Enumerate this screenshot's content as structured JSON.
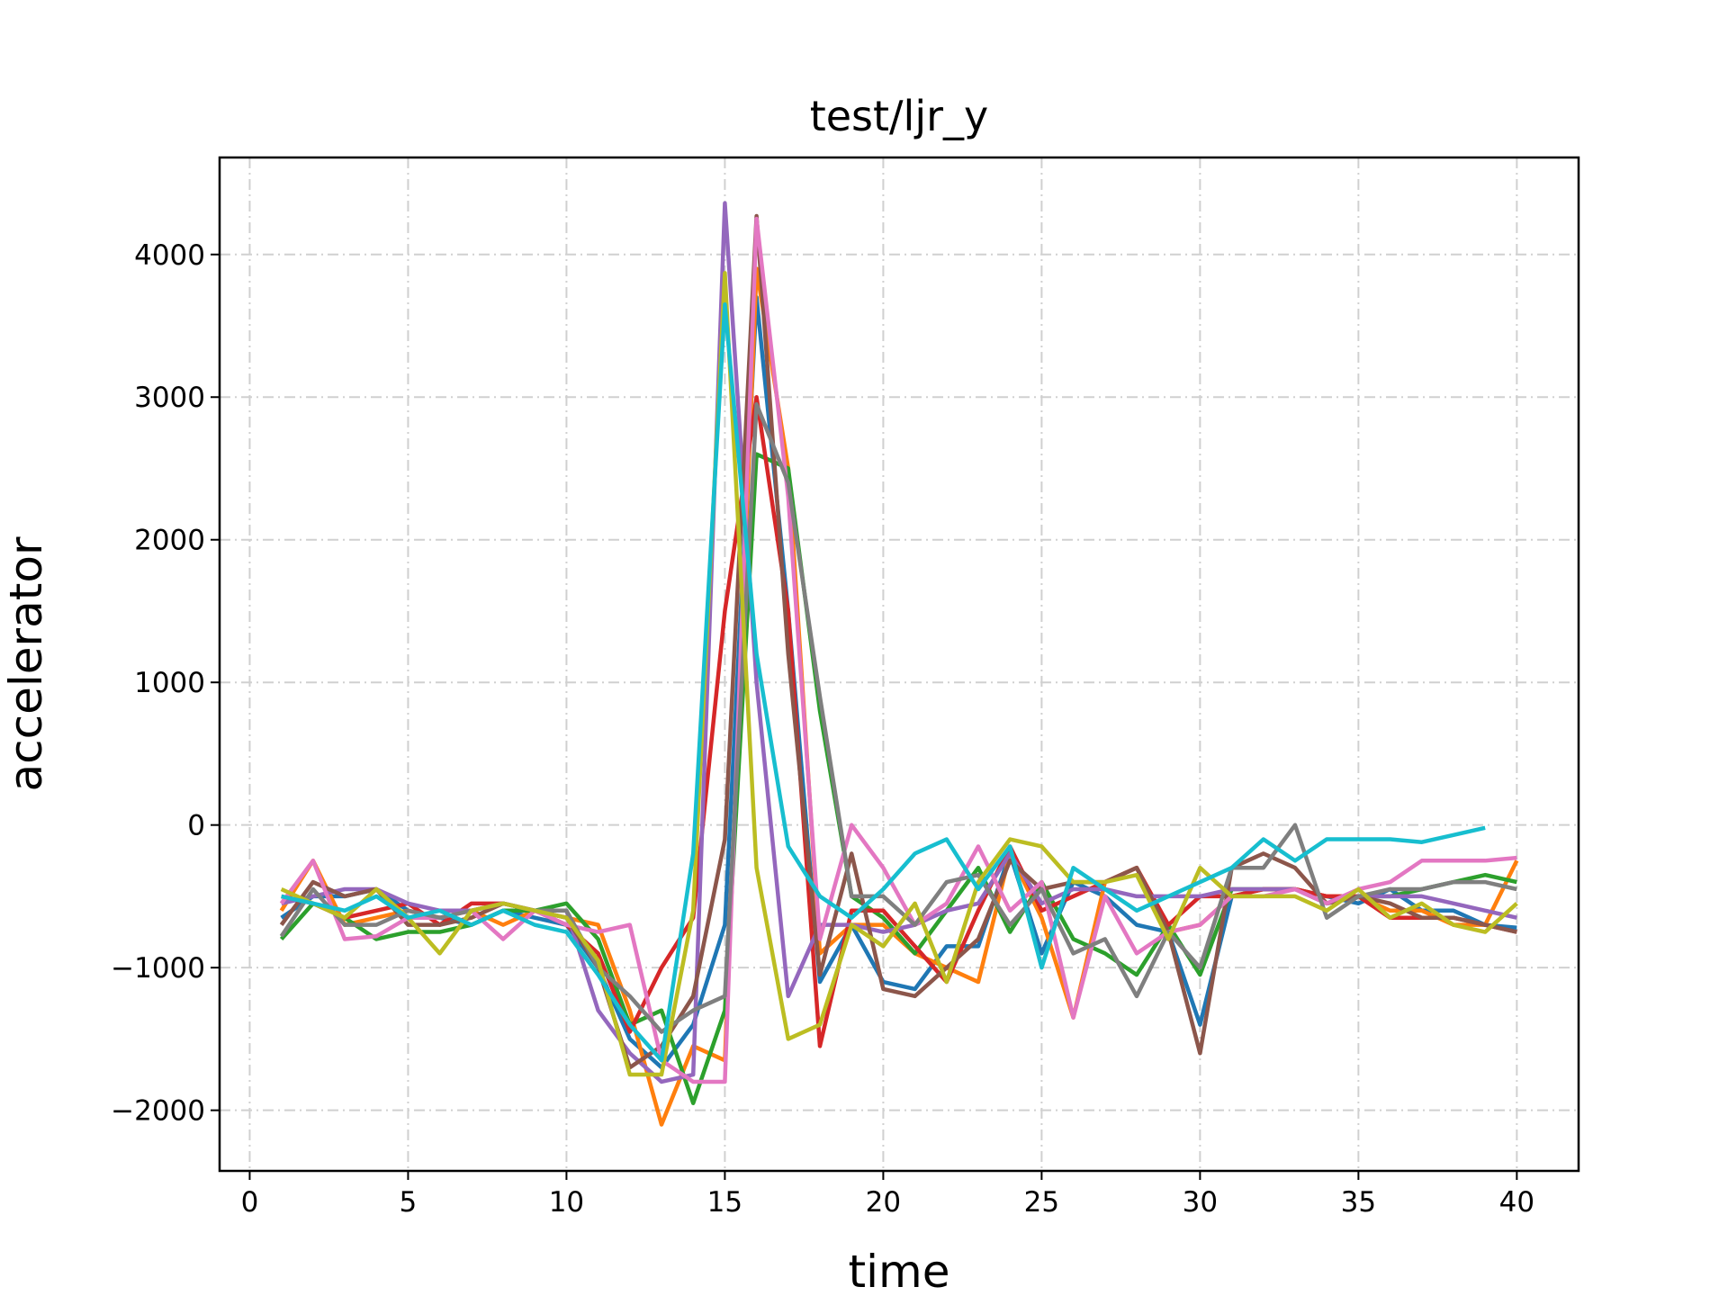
{
  "chart_data": {
    "type": "line",
    "title": "test/ljr_y",
    "xlabel": "time",
    "ylabel": "accelerator",
    "x": [
      1,
      2,
      3,
      4,
      5,
      6,
      7,
      8,
      9,
      10,
      11,
      12,
      13,
      14,
      15,
      16,
      17,
      18,
      19,
      20,
      21,
      22,
      23,
      24,
      25,
      26,
      27,
      28,
      29,
      30,
      31,
      32,
      33,
      34,
      35,
      36,
      37,
      38,
      39,
      40
    ],
    "series": [
      {
        "color": "#1f77b4",
        "values": [
          -650,
          -500,
          -500,
          -450,
          -600,
          -650,
          -700,
          -600,
          -650,
          -700,
          -1000,
          -1500,
          -1700,
          -1400,
          -700,
          3700,
          1500,
          -1100,
          -700,
          -1100,
          -1150,
          -850,
          -850,
          -200,
          -900,
          -400,
          -500,
          -700,
          -750,
          -1400,
          -500,
          -450,
          -450,
          -500,
          -550,
          -450,
          -600,
          -600,
          -700,
          -720
        ]
      },
      {
        "color": "#ff7f0e",
        "values": [
          -600,
          -250,
          -700,
          -650,
          -600,
          -650,
          -600,
          -700,
          -600,
          -650,
          -700,
          -1300,
          -2100,
          -1550,
          -1650,
          3900,
          2500,
          -900,
          -700,
          -700,
          -900,
          -1000,
          -1100,
          -200,
          -650,
          -1350,
          -400,
          -300,
          -750,
          -700,
          -500,
          -450,
          -450,
          -500,
          -500,
          -600,
          -600,
          -700,
          -700,
          -250
        ]
      },
      {
        "color": "#2ca02c",
        "values": [
          -800,
          -550,
          -650,
          -800,
          -750,
          -750,
          -700,
          -600,
          -600,
          -550,
          -800,
          -1400,
          -1300,
          -1950,
          -1300,
          2600,
          2500,
          800,
          -500,
          -650,
          -900,
          -600,
          -300,
          -750,
          -400,
          -800,
          -900,
          -1050,
          -700,
          -1050,
          -450,
          -450,
          -450,
          -550,
          -500,
          -500,
          -450,
          -400,
          -350,
          -400
        ]
      },
      {
        "color": "#d62728",
        "values": [
          -500,
          -550,
          -650,
          -600,
          -550,
          -700,
          -550,
          -550,
          -600,
          -700,
          -900,
          -1450,
          -1000,
          -650,
          1500,
          3000,
          1500,
          -1550,
          -600,
          -600,
          -850,
          -1100,
          -600,
          -150,
          -600,
          -500,
          -400,
          -300,
          -700,
          -500,
          -500,
          -450,
          -450,
          -500,
          -500,
          -650,
          -650,
          -650,
          -700,
          -750
        ]
      },
      {
        "color": "#9467bd",
        "values": [
          -550,
          -500,
          -450,
          -450,
          -550,
          -600,
          -600,
          -550,
          -600,
          -600,
          -1300,
          -1600,
          -1800,
          -1750,
          4360,
          1000,
          -1200,
          -700,
          -700,
          -750,
          -700,
          -600,
          -550,
          -200,
          -550,
          -450,
          -450,
          -500,
          -500,
          -500,
          -450,
          -450,
          -450,
          -550,
          -500,
          -500,
          -500,
          -550,
          -600,
          -650
        ]
      },
      {
        "color": "#8c564b",
        "values": [
          -700,
          -400,
          -500,
          -450,
          -700,
          -700,
          -650,
          -550,
          -600,
          -650,
          -1000,
          -1700,
          -1550,
          -1200,
          -100,
          4270,
          1200,
          -1050,
          -200,
          -1150,
          -1200,
          -1000,
          -800,
          -250,
          -450,
          -400,
          -400,
          -300,
          -750,
          -1600,
          -300,
          -200,
          -300,
          -550,
          -500,
          -550,
          -650,
          -650,
          -700,
          -750
        ]
      },
      {
        "color": "#e377c2",
        "values": [
          -550,
          -250,
          -800,
          -780,
          -650,
          -650,
          -600,
          -800,
          -600,
          -700,
          -750,
          -700,
          -1650,
          -1800,
          -1800,
          4250,
          2300,
          -800,
          0,
          -300,
          -700,
          -550,
          -150,
          -600,
          -400,
          -1350,
          -500,
          -900,
          -750,
          -700,
          -500,
          -500,
          -450,
          -550,
          -450,
          -400,
          -250,
          -250,
          -250,
          -230
        ]
      },
      {
        "color": "#7f7f7f",
        "values": [
          -780,
          -450,
          -700,
          -700,
          -600,
          -650,
          -600,
          -550,
          -600,
          -600,
          -1000,
          -1200,
          -1450,
          -1300,
          -1200,
          2950,
          2400,
          900,
          -500,
          -500,
          -700,
          -400,
          -350,
          -700,
          -450,
          -900,
          -800,
          -1200,
          -750,
          -1000,
          -300,
          -300,
          0,
          -650,
          -500,
          -450,
          -450,
          -400,
          -400,
          -450
        ]
      },
      {
        "color": "#bcbd22",
        "values": [
          -450,
          -550,
          -650,
          -450,
          -650,
          -900,
          -600,
          -550,
          -600,
          -650,
          -950,
          -1750,
          -1750,
          -600,
          3870,
          -300,
          -1500,
          -1400,
          -700,
          -850,
          -550,
          -1100,
          -400,
          -100,
          -150,
          -400,
          -400,
          -350,
          -800,
          -300,
          -500,
          -500,
          -500,
          -600,
          -450,
          -650,
          -550,
          -700,
          -750,
          -550
        ]
      },
      {
        "color": "#17becf",
        "values": [
          -500,
          -550,
          -600,
          -500,
          -650,
          -600,
          -700,
          -600,
          -700,
          -750,
          -1050,
          -1400,
          -1650,
          -200,
          3650,
          1200,
          -150,
          -500,
          -650,
          -450,
          -200,
          -100,
          -450,
          -150,
          -1000,
          -300,
          -450,
          -600,
          -500,
          -400,
          -300,
          -100,
          -250,
          -100,
          -100,
          -100,
          -120,
          -70,
          -20,
          null
        ]
      }
    ],
    "xlim": [
      -0.95,
      41.95
    ],
    "ylim": [
      -2425,
      4680
    ],
    "xticks": [
      0,
      5,
      10,
      15,
      20,
      25,
      30,
      35,
      40
    ],
    "yticks": [
      {
        "value": -2000,
        "label": "−2000"
      },
      {
        "value": -1000,
        "label": "−1000"
      },
      0,
      1000,
      2000,
      3000,
      4000
    ],
    "grid": true
  }
}
